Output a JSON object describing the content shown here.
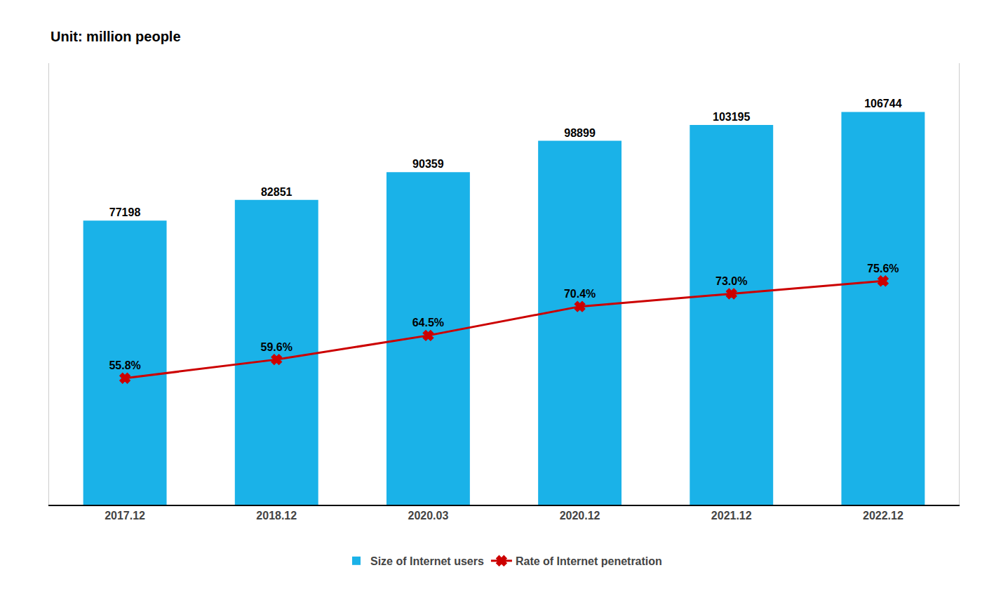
{
  "chart_data": {
    "type": "bar",
    "categories": [
      "2017.12",
      "2018.12",
      "2020.03",
      "2020.12",
      "2021.12",
      "2022.12"
    ],
    "series": [
      {
        "name": "Size of Internet users",
        "type": "bar",
        "color": "#1AB2E8",
        "values": [
          77198,
          82851,
          90359,
          98899,
          103195,
          106744
        ]
      },
      {
        "name": "Rate of Internet penetration",
        "type": "line",
        "axis": "y2",
        "color": "#CC0000",
        "marker": "x",
        "values": [
          55.8,
          59.6,
          64.5,
          70.4,
          73.0,
          75.6
        ],
        "value_labels": [
          "55.8%",
          "59.6%",
          "64.5%",
          "70.4%",
          "73.0%",
          "75.6%"
        ]
      }
    ],
    "ylim": [
      0,
      120000
    ],
    "y2lim": [
      30,
      120
    ],
    "annotations": [
      "Unit: million people"
    ],
    "data_labels": true,
    "tick_labels": "x",
    "grid": false,
    "legend": "bottom"
  }
}
